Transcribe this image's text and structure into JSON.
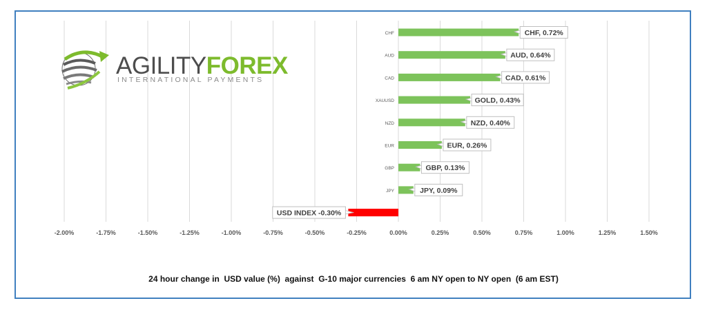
{
  "logo": {
    "name_part1": "AGILITY",
    "name_part2": "FOREX",
    "tagline": "INTERNATIONAL PAYMENTS"
  },
  "caption": "24 hour change in  USD value (%)  against  G-10 major currencies  6 am NY open to NY open  (6 am EST)",
  "colors": {
    "positive": "#7dc35b",
    "negative": "#ff0000",
    "grid": "#d9d9d9",
    "frame": "#3f7fbf"
  },
  "chart_data": {
    "type": "bar",
    "orientation": "horizontal",
    "categories": [
      "CHF",
      "AUD",
      "CAD",
      "XAUUSD",
      "NZD",
      "EUR",
      "GBP",
      "JPY",
      ""
    ],
    "values": [
      0.72,
      0.64,
      0.61,
      0.43,
      0.4,
      0.26,
      0.13,
      0.09,
      -0.3
    ],
    "data_labels": [
      "CHF, 0.72%",
      "AUD, 0.64%",
      "CAD, 0.61%",
      "GOLD, 0.43%",
      "NZD, 0.40%",
      "EUR, 0.26%",
      "GBP, 0.13%",
      "JPY, 0.09%",
      "USD INDEX -0.30%"
    ],
    "xlim": [
      -2.0,
      1.5
    ],
    "x_ticks": [
      -2.0,
      -1.75,
      -1.5,
      -1.25,
      -1.0,
      -0.75,
      -0.5,
      -0.25,
      0.0,
      0.25,
      0.5,
      0.75,
      1.0,
      1.25,
      1.5
    ],
    "x_tick_labels": [
      "-2.00%",
      "-1.75%",
      "-1.50%",
      "-1.25%",
      "-1.00%",
      "-0.75%",
      "-0.50%",
      "-0.25%",
      "0.00%",
      "0.25%",
      "0.50%",
      "0.75%",
      "1.00%",
      "1.25%",
      "1.50%"
    ],
    "grid": true,
    "legend": false
  }
}
